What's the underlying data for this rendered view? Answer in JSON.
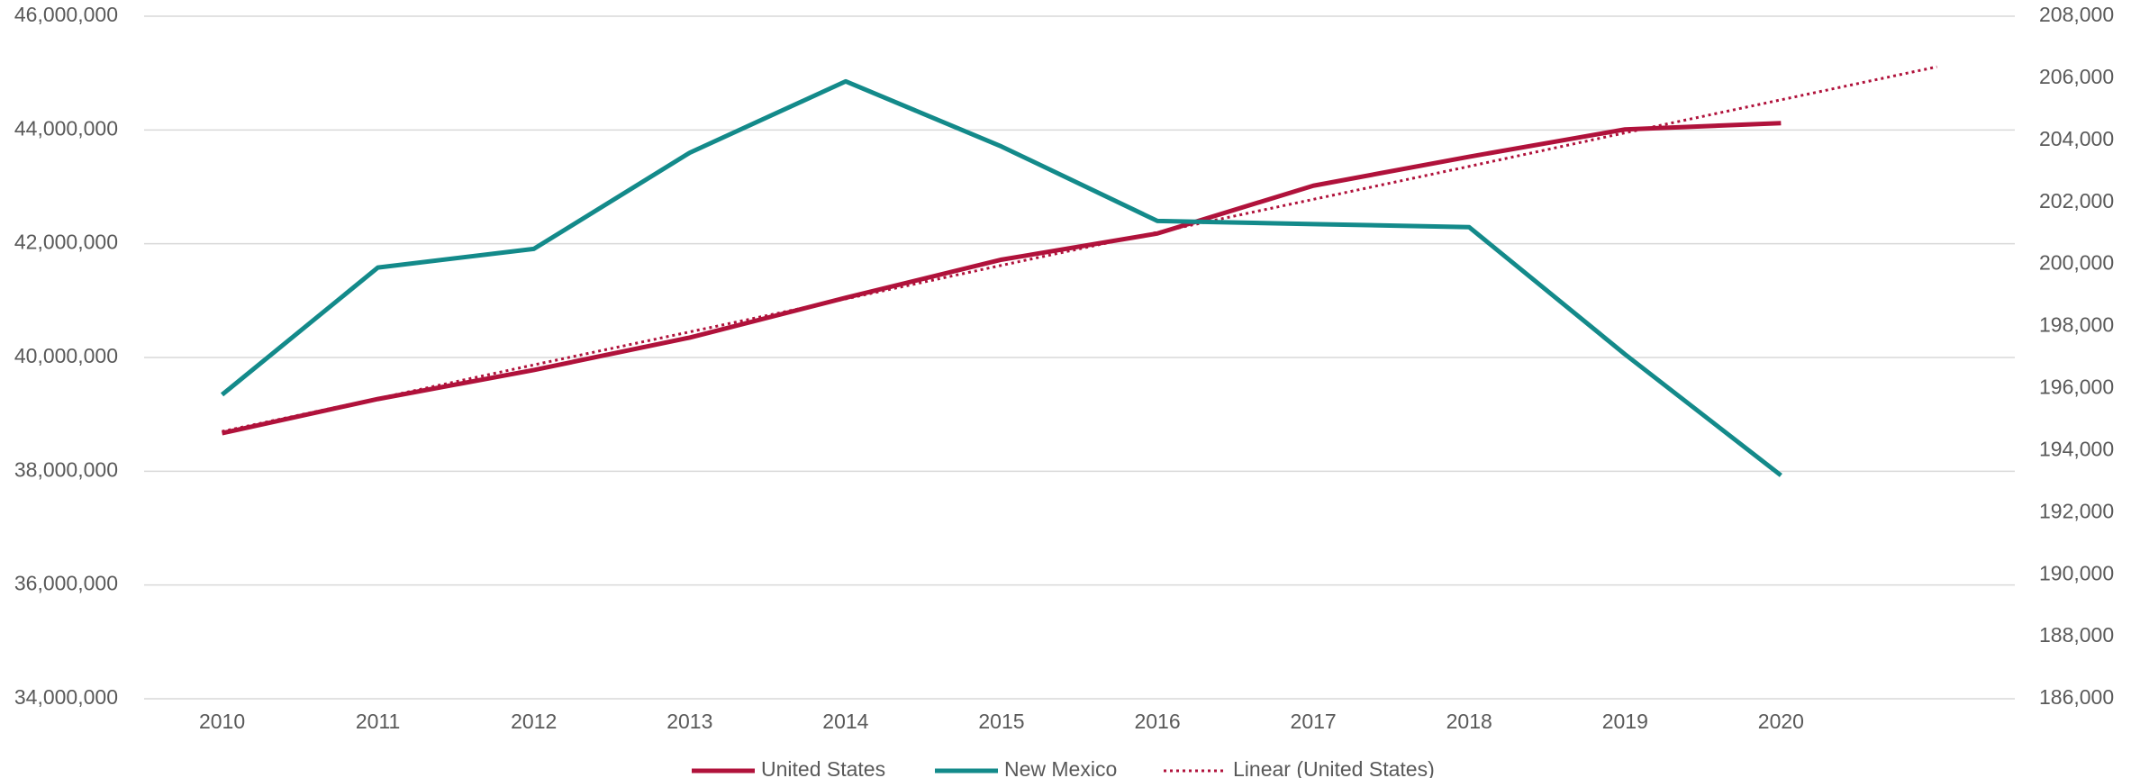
{
  "chart_data": {
    "type": "line",
    "categories": [
      "2010",
      "2011",
      "2012",
      "2013",
      "2014",
      "2015",
      "2016",
      "2017",
      "2018",
      "2019",
      "2020",
      null
    ],
    "series": [
      {
        "name": "United States",
        "color": "#b0123b",
        "axis": "y",
        "values": [
          38670000,
          39270000,
          39780000,
          40350000,
          41050000,
          41720000,
          42180000,
          43020000,
          43530000,
          44010000,
          44120000,
          null
        ]
      },
      {
        "name": "New Mexico",
        "color": "#138a8a",
        "axis": "y2",
        "values": [
          195800,
          199900,
          200500,
          203600,
          205900,
          203800,
          201400,
          201300,
          201200,
          197100,
          193200,
          null
        ]
      },
      {
        "name": "Linear (United States)",
        "color": "#b0123b",
        "axis": "y",
        "dash": "dotted",
        "values": [
          38700000,
          39280000,
          39870000,
          40450000,
          41030000,
          41620000,
          42200000,
          42780000,
          43360000,
          43950000,
          44530000,
          45110000
        ]
      }
    ],
    "ylim": [
      34000000,
      46000000
    ],
    "yticks": [
      {
        "value": 34000000,
        "label": "34,000,000"
      },
      {
        "value": 36000000,
        "label": "36,000,000"
      },
      {
        "value": 38000000,
        "label": "38,000,000"
      },
      {
        "value": 40000000,
        "label": "40,000,000"
      },
      {
        "value": 42000000,
        "label": "42,000,000"
      },
      {
        "value": 44000000,
        "label": "44,000,000"
      },
      {
        "value": 46000000,
        "label": "46,000,000"
      }
    ],
    "y2lim": [
      186000,
      208000
    ],
    "y2ticks": [
      {
        "value": 186000,
        "label": "186,000"
      },
      {
        "value": 188000,
        "label": "188,000"
      },
      {
        "value": 190000,
        "label": "190,000"
      },
      {
        "value": 192000,
        "label": "192,000"
      },
      {
        "value": 194000,
        "label": "194,000"
      },
      {
        "value": 196000,
        "label": "196,000"
      },
      {
        "value": 198000,
        "label": "198,000"
      },
      {
        "value": 200000,
        "label": "200,000"
      },
      {
        "value": 202000,
        "label": "202,000"
      },
      {
        "value": 204000,
        "label": "204,000"
      },
      {
        "value": 206000,
        "label": "206,000"
      },
      {
        "value": 208000,
        "label": "208,000"
      }
    ],
    "grid": true,
    "legend": "bottom"
  }
}
